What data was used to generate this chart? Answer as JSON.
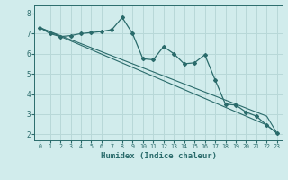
{
  "xlabel": "Humidex (Indice chaleur)",
  "background_color": "#d1ecec",
  "grid_color": "#b8d8d8",
  "line_color": "#2a6b6b",
  "x_data": [
    0,
    1,
    2,
    3,
    4,
    5,
    6,
    7,
    8,
    9,
    10,
    11,
    12,
    13,
    14,
    15,
    16,
    17,
    18,
    19,
    20,
    21,
    22,
    23
  ],
  "y_main": [
    7.3,
    7.0,
    6.85,
    6.9,
    7.0,
    7.05,
    7.1,
    7.2,
    7.8,
    7.0,
    5.75,
    5.7,
    6.35,
    6.0,
    5.5,
    5.55,
    5.95,
    4.7,
    3.5,
    3.45,
    3.1,
    2.9,
    2.45,
    2.05
  ],
  "y_trend1": [
    7.3,
    7.08,
    6.86,
    6.64,
    6.42,
    6.2,
    5.98,
    5.76,
    5.54,
    5.32,
    5.1,
    4.88,
    4.66,
    4.44,
    4.22,
    4.0,
    3.78,
    3.56,
    3.34,
    3.12,
    2.9,
    2.68,
    2.46,
    2.05
  ],
  "y_trend2": [
    7.3,
    7.1,
    6.9,
    6.7,
    6.5,
    6.3,
    6.1,
    5.9,
    5.7,
    5.5,
    5.3,
    5.1,
    4.9,
    4.7,
    4.5,
    4.3,
    4.1,
    3.9,
    3.7,
    3.5,
    3.3,
    3.1,
    2.9,
    2.05
  ],
  "ylim": [
    1.7,
    8.4
  ],
  "xlim": [
    -0.5,
    23.5
  ],
  "yticks": [
    2,
    3,
    4,
    5,
    6,
    7,
    8
  ],
  "xticks": [
    0,
    1,
    2,
    3,
    4,
    5,
    6,
    7,
    8,
    9,
    10,
    11,
    12,
    13,
    14,
    15,
    16,
    17,
    18,
    19,
    20,
    21,
    22,
    23
  ]
}
